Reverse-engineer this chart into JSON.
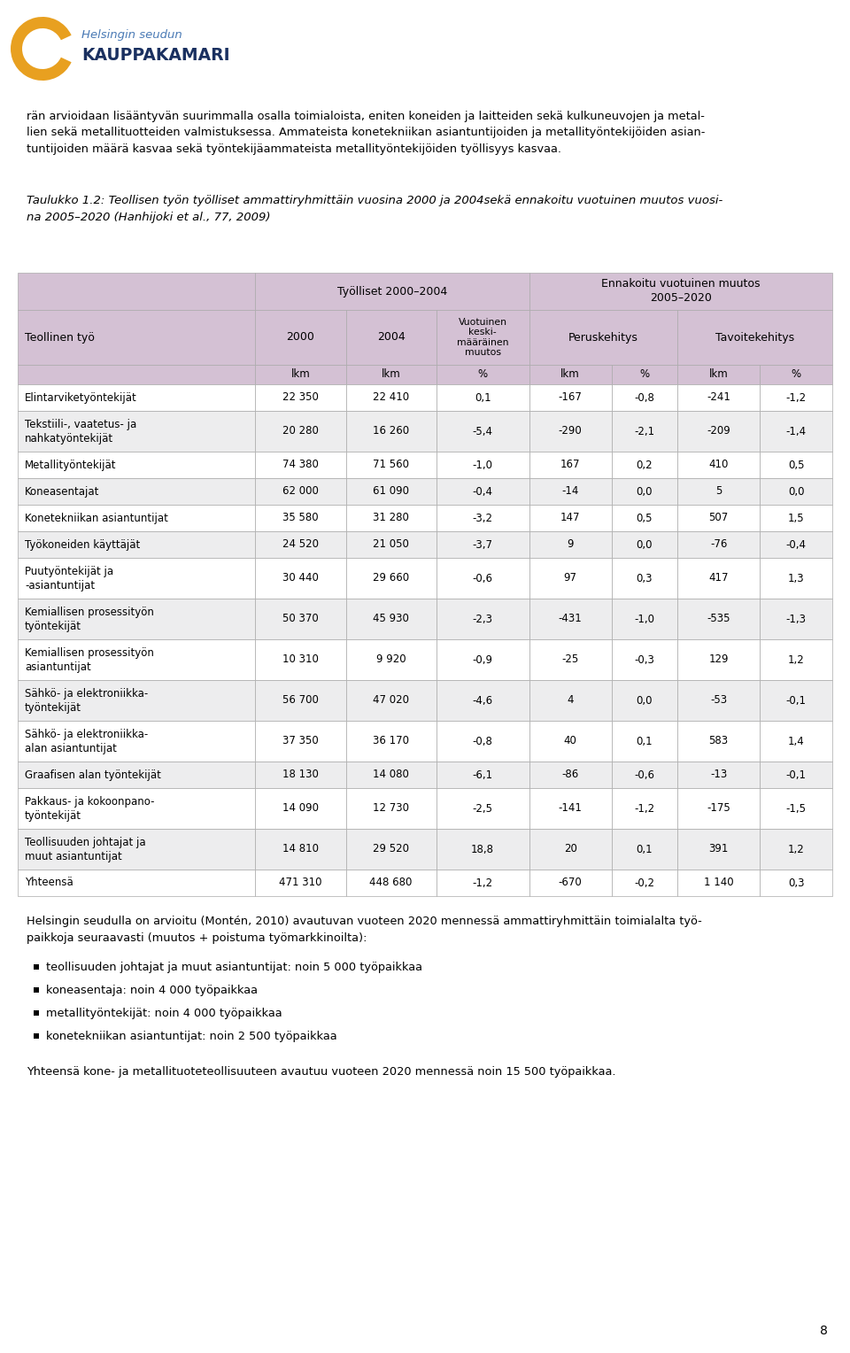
{
  "logo_text1": "Helsingin seudun",
  "logo_text2": "KAUPPAKAMARI",
  "intro_text": "rän arvioidaan lisääntyvän suurimmalla osalla toimialoista, eniten koneiden ja laitteiden sekä kulkuneuvojen ja metal-\nlien sekä metallituotteiden valmistuksessa. Ammateista konetekniikan asiantuntijoiden ja metallityöntekijöiden asian-\ntuntijoiden määrä kasvaa sekä työntekijäammateista metallityöntekijöiden työllisyys kasvaa.",
  "caption": "Taulukko 1.2: Teollisen työn työlliset ammattiryhmittäin vuosina 2000 ja 2004sekä ennakoitu vuotuinen muutos vuosi-\nna 2005–2020 (Hanhijoki et al., 77, 2009)",
  "header_bg": "#d4c1d4",
  "row_bg_light": "#ededee",
  "row_bg_white": "#ffffff",
  "col_header1": "Työlliset 2000–2004",
  "col_header2": "Ennakoitu vuotuinen muutos\n2005–2020",
  "unit_row": [
    "",
    "lkm",
    "lkm",
    "%",
    "lkm",
    "%",
    "lkm",
    "%"
  ],
  "rows": [
    [
      "Elintarviketyöntekijät",
      "22 350",
      "22 410",
      "0,1",
      "-167",
      "-0,8",
      "-241",
      "-1,2"
    ],
    [
      "Tekstiili-, vaatetus- ja\nnahkatyöntekijät",
      "20 280",
      "16 260",
      "-5,4",
      "-290",
      "-2,1",
      "-209",
      "-1,4"
    ],
    [
      "Metallityöntekijät",
      "74 380",
      "71 560",
      "-1,0",
      "167",
      "0,2",
      "410",
      "0,5"
    ],
    [
      "Koneasentajat",
      "62 000",
      "61 090",
      "-0,4",
      "-14",
      "0,0",
      "5",
      "0,0"
    ],
    [
      "Konetekniikan asiantuntijat",
      "35 580",
      "31 280",
      "-3,2",
      "147",
      "0,5",
      "507",
      "1,5"
    ],
    [
      "Työkoneiden käyttäjät",
      "24 520",
      "21 050",
      "-3,7",
      "9",
      "0,0",
      "-76",
      "-0,4"
    ],
    [
      "Puutyöntekijät ja\n-asiantuntijat",
      "30 440",
      "29 660",
      "-0,6",
      "97",
      "0,3",
      "417",
      "1,3"
    ],
    [
      "Kemiallisen prosessityön\ntyöntekijät",
      "50 370",
      "45 930",
      "-2,3",
      "-431",
      "-1,0",
      "-535",
      "-1,3"
    ],
    [
      "Kemiallisen prosessityön\nasiantuntijat",
      "10 310",
      "9 920",
      "-0,9",
      "-25",
      "-0,3",
      "129",
      "1,2"
    ],
    [
      "Sähkö- ja elektroniikka-\ntyöntekijät",
      "56 700",
      "47 020",
      "-4,6",
      "4",
      "0,0",
      "-53",
      "-0,1"
    ],
    [
      "Sähkö- ja elektroniikka-\nalan asiantuntijat",
      "37 350",
      "36 170",
      "-0,8",
      "40",
      "0,1",
      "583",
      "1,4"
    ],
    [
      "Graafisen alan työntekijät",
      "18 130",
      "14 080",
      "-6,1",
      "-86",
      "-0,6",
      "-13",
      "-0,1"
    ],
    [
      "Pakkaus- ja kokoonpano-\ntyöntekijät",
      "14 090",
      "12 730",
      "-2,5",
      "-141",
      "-1,2",
      "-175",
      "-1,5"
    ],
    [
      "Teollisuuden johtajat ja\nmuut asiantuntijat",
      "14 810",
      "29 520",
      "18,8",
      "20",
      "0,1",
      "391",
      "1,2"
    ],
    [
      "Yhteensä",
      "471 310",
      "448 680",
      "-1,2",
      "-670",
      "-0,2",
      "1 140",
      "0,3"
    ]
  ],
  "footer_text": "Helsingin seudulla on arvioitu (Montén, 2010) avautuvan vuoteen 2020 mennessä ammattiryhmittäin toimialalta työ-\npaikkoja seuraavasti (muutos + poistuma työmarkkinoilta):",
  "bullet_points": [
    "teollisuuden johtajat ja muut asiantuntijat: noin 5 000 työpaikkaa",
    "koneasentaja: noin 4 000 työpaikkaa",
    "metallityöntekijät: noin 4 000 työpaikkaa",
    "konetekniikan asiantuntijat: noin 2 500 työpaikkaa"
  ],
  "final_text": "Yhteensä kone- ja metallituoteteollisuuteen avautuu vuoteen 2020 mennessä noin 15 500 työpaikkaa.",
  "page_number": "8"
}
